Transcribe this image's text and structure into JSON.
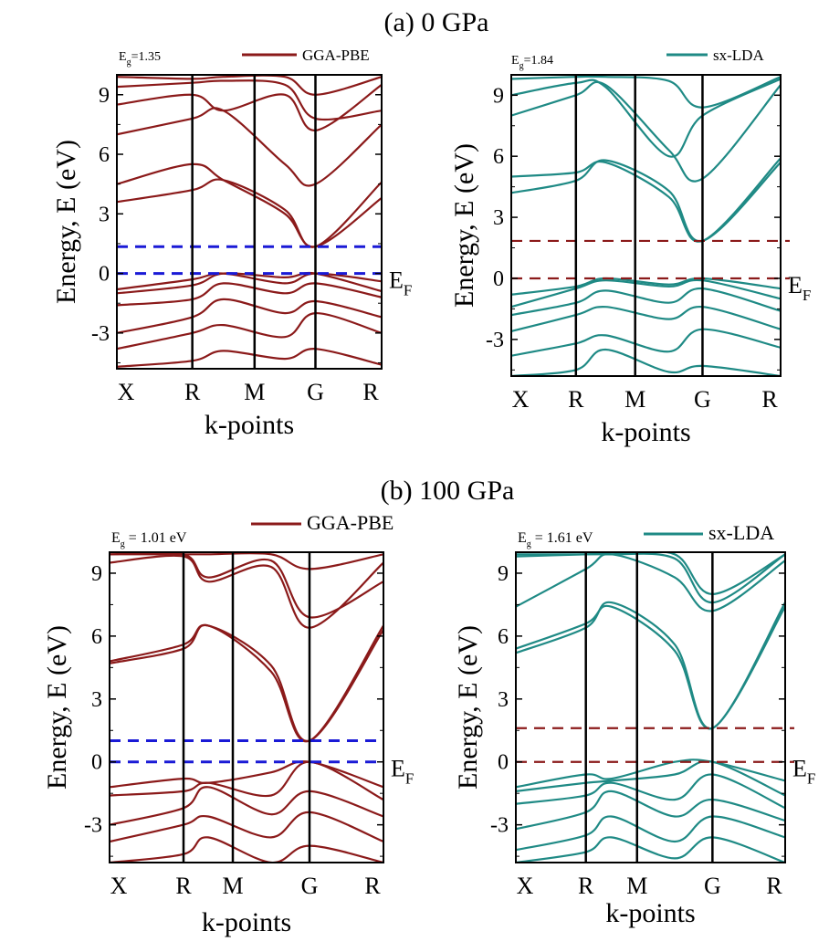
{
  "sections": [
    {
      "label": "(a)",
      "pressure": "0 GPa"
    },
    {
      "label": "(b)",
      "pressure": "100 GPa"
    }
  ],
  "colors": {
    "pbe": "#8b1a1a",
    "lda": "#1f8a85",
    "blue_dash": "#1a1ad6",
    "red_dash": "#8b1a1a"
  },
  "chart_data": [
    {
      "type": "line",
      "section": "(a) 0 GPa",
      "legend": "GGA-PBE",
      "gap_prefix": "E",
      "gap_sub": "g",
      "gap_value": "=1.35",
      "ylabel": "Energy, E (eV)",
      "xlabel": "k-points",
      "k_labels": [
        "X",
        "R",
        "M",
        "G",
        "R"
      ],
      "k_positions": [
        0,
        0.285,
        0.52,
        0.75,
        1.0
      ],
      "ylim": [
        -4.8,
        10
      ],
      "yticks": [
        -3,
        0,
        3,
        6,
        9
      ],
      "fermi_label": "E",
      "fermi_sub": "F",
      "gap": 1.35,
      "dashed_levels": [
        0,
        1.35
      ],
      "bands": [
        [
          -4.7,
          -4.4,
          -3.9,
          -4.3,
          -3.8,
          -4.6
        ],
        [
          -3.8,
          -3.0,
          -2.6,
          -3.2,
          -2.0,
          -3.0
        ],
        [
          -3.0,
          -2.2,
          -1.3,
          -2.0,
          -1.4,
          -2.2
        ],
        [
          -1.6,
          -1.3,
          -0.5,
          -1.0,
          -0.5,
          -1.2
        ],
        [
          -1.0,
          -0.6,
          0.0,
          -0.2,
          0.0,
          -0.9
        ],
        [
          -0.8,
          -0.3,
          0.0,
          -0.5,
          0.0,
          -0.4
        ],
        [
          3.6,
          4.2,
          4.7,
          3.2,
          1.35,
          4.6
        ],
        [
          4.5,
          5.5,
          4.7,
          3.0,
          1.35,
          3.8
        ],
        [
          7.0,
          7.8,
          8.2,
          5.5,
          4.5,
          7.5
        ],
        [
          8.5,
          9.0,
          8.2,
          9.0,
          7.2,
          9.5
        ],
        [
          9.4,
          9.6,
          9.7,
          9.5,
          7.8,
          8.2
        ],
        [
          9.9,
          9.8,
          9.9,
          9.9,
          9.0,
          9.9
        ]
      ]
    },
    {
      "type": "line",
      "section": "(a) 0 GPa",
      "legend": "sx-LDA",
      "gap_prefix": "E",
      "gap_sub": "g",
      "gap_value": "=1.84",
      "ylabel": "Energy, E (eV)",
      "xlabel": "k-points",
      "k_labels": [
        "X",
        "R",
        "M",
        "G",
        "R"
      ],
      "k_positions": [
        0,
        0.24,
        0.46,
        0.71,
        1.0
      ],
      "ylim": [
        -4.8,
        10
      ],
      "yticks": [
        -3,
        0,
        3,
        6,
        9
      ],
      "fermi_label": "E",
      "fermi_sub": "F",
      "gap": 1.84,
      "dashed_levels": [
        0,
        1.84
      ],
      "bands": [
        [
          -4.8,
          -4.5,
          -3.5,
          -4.6,
          -4.3,
          -4.8
        ],
        [
          -3.8,
          -3.2,
          -2.8,
          -3.6,
          -2.5,
          -3.4
        ],
        [
          -2.6,
          -1.8,
          -1.4,
          -2.0,
          -1.4,
          -2.5
        ],
        [
          -1.8,
          -1.2,
          -0.6,
          -1.2,
          -0.5,
          -1.6
        ],
        [
          -1.4,
          -0.5,
          -0.1,
          -0.4,
          -0.1,
          -1.0
        ],
        [
          -0.8,
          -0.4,
          0.0,
          -0.3,
          0.0,
          -0.5
        ],
        [
          4.2,
          4.8,
          5.8,
          4.3,
          1.84,
          5.7
        ],
        [
          5.0,
          5.2,
          5.7,
          4.0,
          1.84,
          5.9
        ],
        [
          8.0,
          9.0,
          9.5,
          6.3,
          4.9,
          9.5
        ],
        [
          9.0,
          9.6,
          9.4,
          6.0,
          8.0,
          9.8
        ],
        [
          9.8,
          9.9,
          9.9,
          9.7,
          8.4,
          9.9
        ]
      ]
    },
    {
      "type": "line",
      "section": "(b) 100 GPa",
      "legend": "GGA-PBE",
      "gap_prefix": "E",
      "gap_sub": "g",
      "gap_value": " = 1.01 eV",
      "ylabel": "Energy, E (eV)",
      "xlabel": "k-points",
      "k_labels": [
        "X",
        "R",
        "M",
        "G",
        "R"
      ],
      "k_positions": [
        0,
        0.27,
        0.45,
        0.73,
        1.0
      ],
      "ylim": [
        -4.8,
        10
      ],
      "yticks": [
        -3,
        0,
        3,
        6,
        9
      ],
      "fermi_label": "E",
      "fermi_sub": "F",
      "gap": 1.01,
      "dashed_levels": [
        0,
        1.01
      ],
      "bands": [
        [
          -4.8,
          -4.4,
          -3.6,
          -4.8,
          -4.0,
          -4.8
        ],
        [
          -3.8,
          -3.0,
          -2.6,
          -3.6,
          -2.4,
          -3.8
        ],
        [
          -3.0,
          -2.2,
          -1.2,
          -2.5,
          -1.4,
          -2.6
        ],
        [
          -1.6,
          -1.4,
          -1.0,
          -1.6,
          0.0,
          -1.8
        ],
        [
          -1.2,
          -0.8,
          -1.0,
          -0.5,
          0.0,
          -1.2
        ],
        [
          4.7,
          5.4,
          6.5,
          4.3,
          1.01,
          6.5
        ],
        [
          4.8,
          5.6,
          6.5,
          4.6,
          1.01,
          6.3
        ],
        [
          9.5,
          9.8,
          8.6,
          9.3,
          6.4,
          9.5
        ],
        [
          9.9,
          9.9,
          8.8,
          9.6,
          6.9,
          8.6
        ],
        [
          9.9,
          9.9,
          9.9,
          9.9,
          9.2,
          9.9
        ]
      ]
    },
    {
      "type": "line",
      "section": "(b) 100 GPa",
      "legend": "sx-LDA",
      "gap_prefix": "E",
      "gap_sub": "g",
      "gap_value": " = 1.61 eV",
      "ylabel": "Energy, E (eV)",
      "xlabel": "k-points",
      "k_labels": [
        "X",
        "R",
        "M",
        "G",
        "R"
      ],
      "k_positions": [
        0,
        0.26,
        0.45,
        0.73,
        1.0
      ],
      "ylim": [
        -4.8,
        10
      ],
      "yticks": [
        -3,
        0,
        3,
        6,
        9
      ],
      "fermi_label": "E",
      "fermi_sub": "F",
      "gap": 1.61,
      "dashed_levels": [
        0,
        1.61
      ],
      "bands": [
        [
          -4.8,
          -4.3,
          -3.6,
          -4.6,
          -3.6,
          -4.8
        ],
        [
          -4.2,
          -3.5,
          -2.6,
          -3.8,
          -2.6,
          -3.6
        ],
        [
          -3.2,
          -2.4,
          -1.4,
          -2.6,
          -1.8,
          -2.8
        ],
        [
          -2.0,
          -1.6,
          -1.0,
          -1.8,
          -0.6,
          -2.2
        ],
        [
          -1.4,
          -1.0,
          -0.9,
          -0.6,
          0.0,
          -1.6
        ],
        [
          -1.2,
          -0.6,
          -0.8,
          0.0,
          0.0,
          -0.9
        ],
        [
          5.2,
          6.4,
          7.6,
          5.6,
          1.61,
          7.6
        ],
        [
          5.4,
          6.6,
          7.4,
          5.3,
          1.61,
          7.4
        ],
        [
          7.4,
          9.2,
          9.9,
          8.8,
          7.2,
          9.6
        ],
        [
          9.8,
          9.9,
          9.9,
          9.7,
          7.6,
          9.9
        ],
        [
          9.9,
          9.9,
          9.9,
          9.9,
          8.0,
          9.9
        ]
      ]
    }
  ]
}
